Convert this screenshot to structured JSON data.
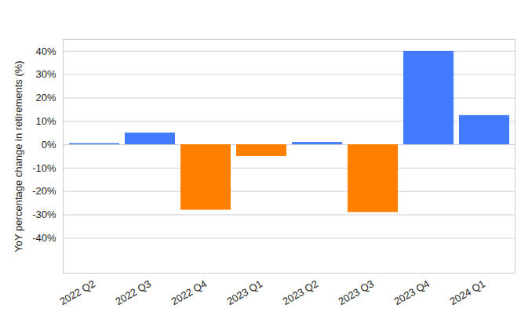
{
  "chart_data": {
    "type": "bar",
    "y_label": "YoY percentage change in retirements (%)",
    "categories": [
      "2022 Q2",
      "2022 Q3",
      "2022 Q4",
      "2023 Q1",
      "2023 Q2",
      "2023 Q3",
      "2023 Q4",
      "2024 Q1"
    ],
    "values": [
      0.5,
      5,
      -28,
      -5,
      1,
      -29,
      40,
      12.5
    ],
    "colors": [
      "#427bff",
      "#427bff",
      "#ff8000",
      "#ff8000",
      "#427bff",
      "#ff8000",
      "#427bff",
      "#427bff"
    ],
    "ylim": [
      -55,
      45
    ],
    "yticks": [
      {
        "value": -40,
        "label": "-40%"
      },
      {
        "value": -30,
        "label": "-30%"
      },
      {
        "value": -20,
        "label": "-20%"
      },
      {
        "value": -10,
        "label": "-10%"
      },
      {
        "value": 0,
        "label": "0%"
      },
      {
        "value": 10,
        "label": "10%"
      },
      {
        "value": 20,
        "label": "20%"
      },
      {
        "value": 30,
        "label": "30%"
      },
      {
        "value": 40,
        "label": "40%"
      }
    ],
    "grid": true
  }
}
